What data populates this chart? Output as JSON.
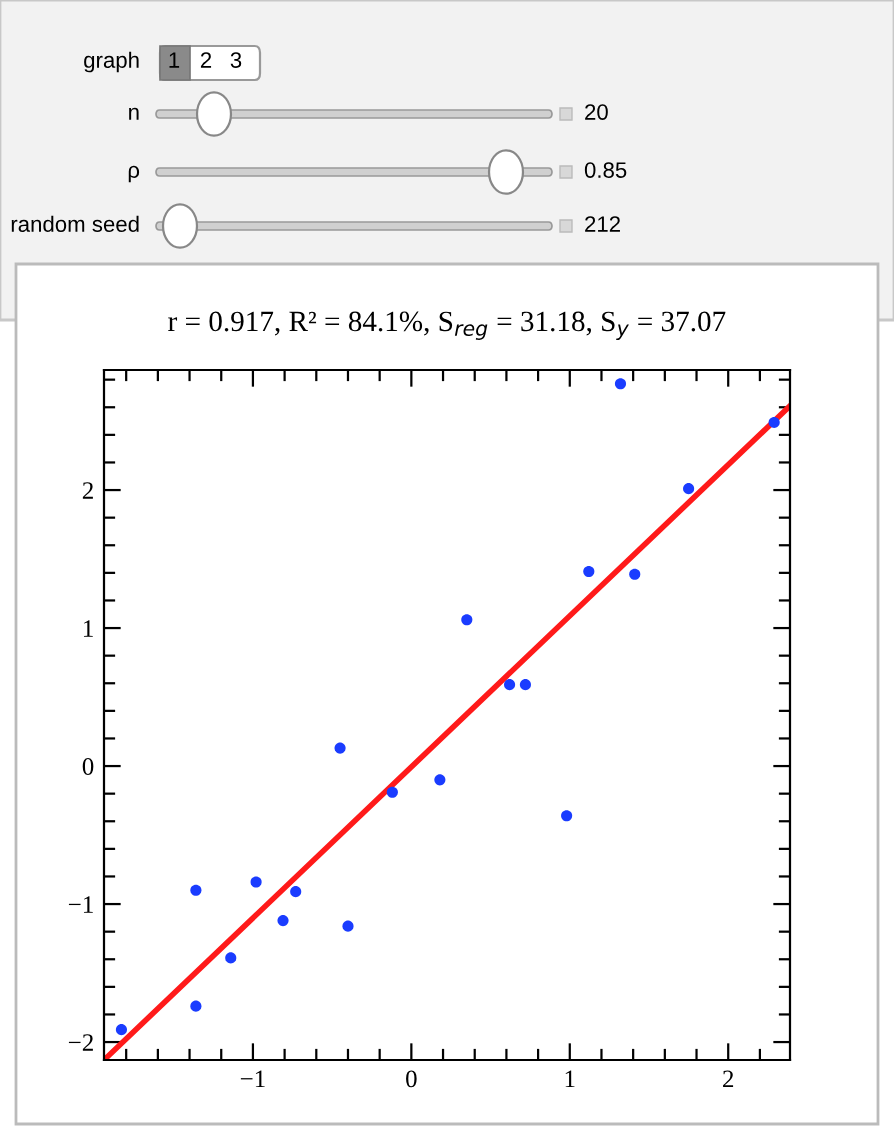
{
  "chart_data": {
    "type": "scatter",
    "title": "r = 0.917, R² = 84.1%, S$_{reg}$ = 31.18, S$_{y}$ = 37.07",
    "series": [
      {
        "color": "#1a3cff",
        "marker": "circle",
        "x": [
          -1.83,
          -1.36,
          -1.36,
          -1.14,
          -0.98,
          -0.81,
          -0.73,
          -0.45,
          -0.4,
          -0.12,
          0.18,
          0.35,
          0.62,
          0.72,
          0.98,
          1.12,
          1.32,
          1.41,
          1.75,
          2.29
        ],
        "values": [
          -1.91,
          -1.74,
          -0.9,
          -1.39,
          -0.84,
          -1.12,
          -0.91,
          0.13,
          -1.16,
          -0.19,
          -0.1,
          1.06,
          0.59,
          0.59,
          -0.36,
          1.41,
          2.77,
          1.39,
          2.01,
          2.49
        ]
      },
      {
        "type": "line",
        "color": "#ff1a1a",
        "marker": "none",
        "line_style": "solid",
        "x": [
          -1.94,
          2.39
        ],
        "values": [
          -2.13,
          2.61
        ]
      }
    ],
    "xlim": [
      -1.94,
      2.39
    ],
    "ylim": [
      -2.13,
      2.87
    ],
    "xticks": [
      {
        "value": -1.8,
        "label": null
      },
      {
        "value": -1.6,
        "label": null
      },
      {
        "value": -1.4,
        "label": null
      },
      {
        "value": -1.2,
        "label": null
      },
      -1,
      {
        "value": -0.8,
        "label": null
      },
      {
        "value": -0.6,
        "label": null
      },
      {
        "value": -0.4,
        "label": null
      },
      {
        "value": -0.2,
        "label": null
      },
      0,
      {
        "value": 0.2,
        "label": null
      },
      {
        "value": 0.4,
        "label": null
      },
      {
        "value": 0.6,
        "label": null
      },
      {
        "value": 0.8,
        "label": null
      },
      1,
      {
        "value": 1.2,
        "label": null
      },
      {
        "value": 1.4,
        "label": null
      },
      {
        "value": 1.6,
        "label": null
      },
      {
        "value": 1.8,
        "label": null
      },
      2,
      {
        "value": 2.2,
        "label": null
      }
    ],
    "yticks": [
      -2,
      {
        "value": -1.8,
        "label": null
      },
      {
        "value": -1.6,
        "label": null
      },
      {
        "value": -1.4,
        "label": null
      },
      {
        "value": -1.2,
        "label": null
      },
      -1,
      {
        "value": -0.8,
        "label": null
      },
      {
        "value": -0.6,
        "label": null
      },
      {
        "value": -0.4,
        "label": null
      },
      {
        "value": -0.2,
        "label": null
      },
      0,
      {
        "value": 0.2,
        "label": null
      },
      {
        "value": 0.4,
        "label": null
      },
      {
        "value": 0.6,
        "label": null
      },
      {
        "value": 0.8,
        "label": null
      },
      1,
      {
        "value": 1.2,
        "label": null
      },
      {
        "value": 1.4,
        "label": null
      },
      {
        "value": 1.6,
        "label": null
      },
      {
        "value": 1.8,
        "label": null
      },
      2,
      {
        "value": 2.2,
        "label": null
      },
      {
        "value": 2.4,
        "label": null
      },
      {
        "value": 2.6,
        "label": null
      },
      {
        "value": 2.8,
        "label": null
      }
    ],
    "grid": false,
    "legend": false,
    "annotations": [
      "graph",
      "1",
      "2",
      "3",
      "n",
      "20",
      "ρ",
      "0.85",
      "random seed",
      "212"
    ]
  }
}
